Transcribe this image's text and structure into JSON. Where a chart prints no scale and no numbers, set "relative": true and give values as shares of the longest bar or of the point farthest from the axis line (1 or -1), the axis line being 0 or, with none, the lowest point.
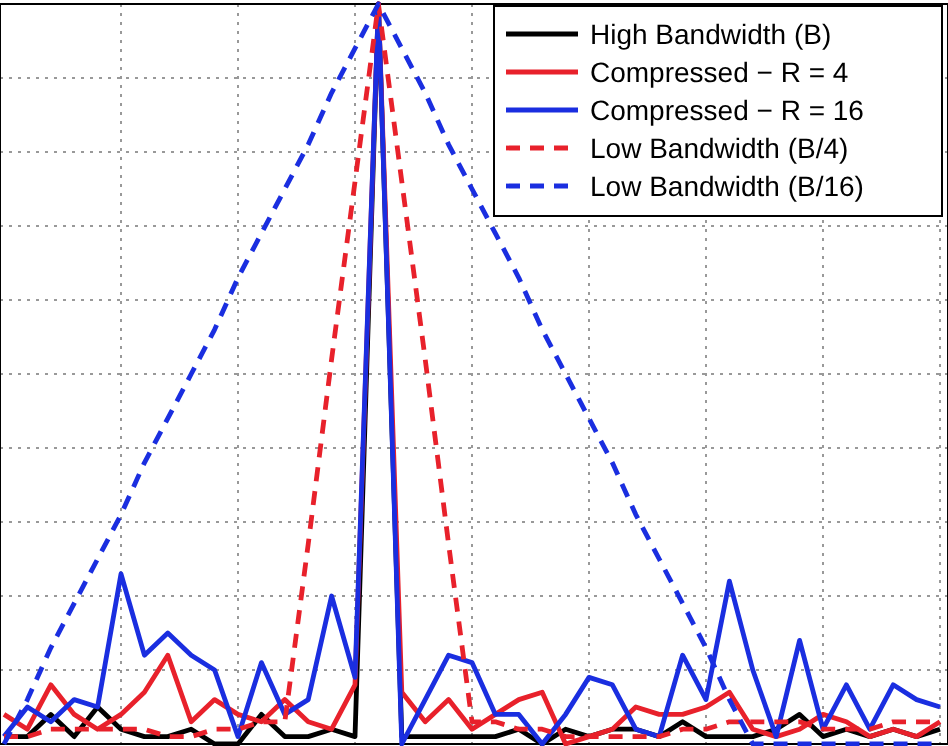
{
  "chart_data": {
    "type": "line",
    "relative": true,
    "grid": true,
    "legend": "top right",
    "categories": [
      null,
      null,
      null,
      null,
      null,
      null,
      null,
      null,
      null,
      null,
      null,
      null,
      null,
      null,
      null,
      null,
      null,
      null,
      null,
      null,
      null,
      null,
      null,
      null,
      null,
      null,
      null,
      null,
      null,
      null,
      null,
      null,
      null,
      null,
      null,
      null,
      null,
      null,
      null,
      null,
      null
    ],
    "series": [
      {
        "name": "High Bandwidth (B)",
        "color": "#000000",
        "line_style": "solid",
        "values": [
          0.01,
          0.01,
          0.04,
          0.01,
          0.05,
          0.02,
          0.01,
          0.01,
          0.02,
          0,
          0,
          0.04,
          0.01,
          0.01,
          0.02,
          0.01,
          1,
          0.01,
          0.01,
          0.01,
          0.01,
          0.01,
          0.02,
          0,
          0.02,
          0.01,
          0.02,
          0.02,
          0.01,
          0.03,
          0.01,
          0.01,
          0.01,
          0.02,
          0.04,
          0.01,
          0.02,
          0.01,
          0.02,
          0.01,
          0.02
        ]
      },
      {
        "name": "Compressed − R = 4",
        "color": "#e8212b",
        "line_style": "solid",
        "values": [
          0.04,
          0.02,
          0.08,
          0.04,
          0.02,
          0.04,
          0.07,
          0.12,
          0.03,
          0.06,
          0.04,
          0.03,
          0.06,
          0.03,
          0.02,
          0.08,
          1,
          0.07,
          0.03,
          0.06,
          0.02,
          0.04,
          0.06,
          0.07,
          0,
          0.01,
          0.02,
          0.05,
          0.04,
          0.04,
          0.05,
          0.07,
          0.02,
          0.01,
          0.02,
          0.04,
          0.03,
          0.01,
          0.02,
          0.01,
          0.03
        ]
      },
      {
        "name": "Compressed − R = 16",
        "color": "#1a2ee0",
        "line_style": "solid",
        "values": [
          0.01,
          0.05,
          0.03,
          0.06,
          0.05,
          0.23,
          0.12,
          0.15,
          0.12,
          0.1,
          0.01,
          0.11,
          0.04,
          0.06,
          0.2,
          0.09,
          1,
          0,
          0.06,
          0.12,
          0.11,
          0.04,
          0.04,
          0,
          0.04,
          0.09,
          0.08,
          0.02,
          0.01,
          0.12,
          0.06,
          0.22,
          0.1,
          0.01,
          0.14,
          0.02,
          0.08,
          0.02,
          0.08,
          0.06,
          0.05
        ]
      },
      {
        "name": "Low Bandwidth (B/4)",
        "color": "#e8212b",
        "line_style": "dashed",
        "values": [
          0.01,
          0.01,
          0.02,
          0.02,
          0.02,
          0.02,
          0.02,
          0.01,
          0.01,
          0.02,
          0.02,
          0.03,
          0.03,
          0.27,
          0.52,
          0.76,
          1,
          0.76,
          0.52,
          0.27,
          0.03,
          0.03,
          0.02,
          0.02,
          0.01,
          0.01,
          0.01,
          0.01,
          0.01,
          0.02,
          0.02,
          0.03,
          0.03,
          0.03,
          0.03,
          0.02,
          0.02,
          0.02,
          0.03,
          0.03,
          0.03
        ]
      },
      {
        "name": "Low Bandwidth (B/16)",
        "color": "#1a2ee0",
        "line_style": "dashed",
        "values": [
          0,
          0.06,
          0.13,
          0.19,
          0.25,
          0.31,
          0.38,
          0.44,
          0.5,
          0.56,
          0.63,
          0.69,
          0.75,
          0.81,
          0.88,
          0.94,
          1,
          0.94,
          0.88,
          0.81,
          0.75,
          0.69,
          0.63,
          0.56,
          0.5,
          0.44,
          0.38,
          0.31,
          0.25,
          0.19,
          0.13,
          0.06,
          0,
          0,
          0,
          0,
          0,
          0,
          0,
          0,
          0
        ]
      }
    ]
  }
}
